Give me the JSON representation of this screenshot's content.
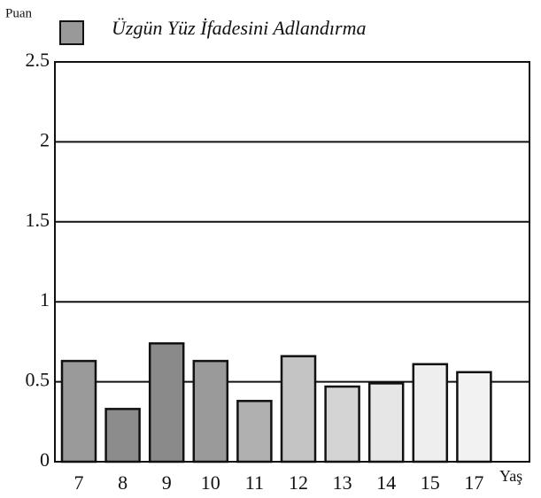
{
  "chart_data": {
    "type": "bar",
    "y_label": "Puan",
    "x_label": "Yaş",
    "series_name": "Üzgün Yüz İfadesini Adlandırma",
    "categories": [
      "7",
      "8",
      "9",
      "10",
      "11",
      "12",
      "13",
      "14",
      "15",
      "17"
    ],
    "values": [
      0.63,
      0.33,
      0.74,
      0.63,
      0.38,
      0.66,
      0.47,
      0.49,
      0.61,
      0.56
    ],
    "colors": [
      "#9a9a9a",
      "#8c8c8c",
      "#8a8a8a",
      "#9a9a9a",
      "#b0b0b0",
      "#c4c4c4",
      "#d4d4d4",
      "#e6e6e6",
      "#eeeeee",
      "#f2f2f2"
    ],
    "ylim": [
      0,
      2.5
    ],
    "yticks": [
      0,
      0.5,
      1,
      1.5,
      2,
      2.5
    ],
    "grid": true
  }
}
